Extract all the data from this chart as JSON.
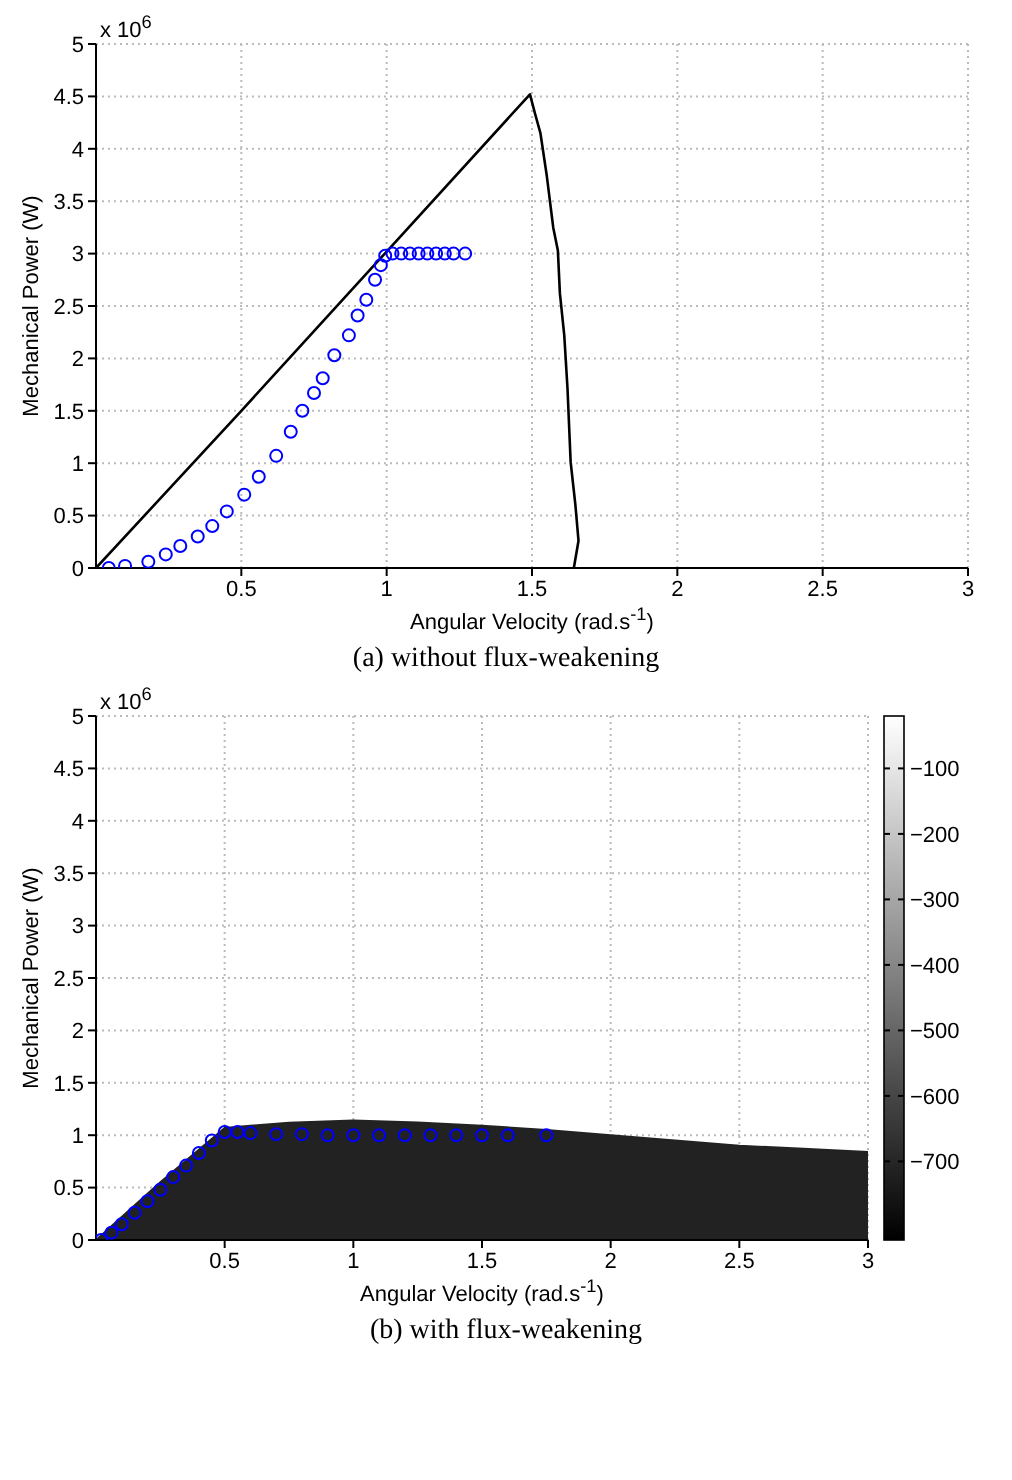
{
  "chart_data": [
    {
      "type": "line",
      "title": "(a)  without flux-weakening",
      "xlabel": "Angular Velocity (rad.s$^{-1}$)",
      "ylabel": "Mechanical Power (W)",
      "annotations": [
        "x 10$^{6}$"
      ],
      "xlim": [
        0,
        3
      ],
      "xticks": [
        0.5,
        1,
        1.5,
        2,
        2.5,
        3
      ],
      "ylim": [
        0,
        5
      ],
      "yticks": [
        0,
        0.5,
        1,
        1.5,
        2,
        2.5,
        3,
        3.5,
        4,
        4.5,
        5
      ],
      "grid": true,
      "series": [
        {
          "color": "#000000",
          "x": [
            0,
            0.5,
            1,
            1.493,
            1.511,
            1.529,
            1.551,
            1.573,
            1.589,
            1.596,
            1.611,
            1.622,
            1.633,
            1.649,
            1.66,
            1.644
          ],
          "values": [
            0,
            1.5,
            3.02,
            4.52,
            4.33,
            4.15,
            3.74,
            3.25,
            3.03,
            2.62,
            2.22,
            1.72,
            1.01,
            0.61,
            0.26,
            0
          ]
        },
        {
          "type": "scatter",
          "marker": "circle",
          "color": "#0000ff",
          "x": [
            0.044,
            0.1,
            0.18,
            0.24,
            0.29,
            0.35,
            0.4,
            0.45,
            0.51,
            0.56,
            0.62,
            0.67,
            0.71,
            0.75,
            0.78,
            0.82,
            0.87,
            0.9,
            0.93,
            0.96,
            0.98,
            0.995,
            1.02,
            1.05,
            1.08,
            1.11,
            1.14,
            1.17,
            1.2,
            1.23,
            1.27
          ],
          "values": [
            0,
            0.02,
            0.06,
            0.13,
            0.21,
            0.3,
            0.4,
            0.54,
            0.7,
            0.87,
            1.07,
            1.3,
            1.5,
            1.67,
            1.81,
            2.03,
            2.22,
            2.41,
            2.56,
            2.75,
            2.89,
            2.98,
            3,
            3,
            3,
            3,
            3,
            3,
            3,
            3,
            3
          ]
        }
      ]
    },
    {
      "type": "area",
      "title": "(b)  with flux-weakening",
      "xlabel": "Angular Velocity (rad.s$^{-1}$)",
      "ylabel": "Mechanical Power (W)",
      "annotations": [
        "x 10$^{6}$"
      ],
      "xlim": [
        0,
        3
      ],
      "xticks": [
        0.5,
        1,
        1.5,
        2,
        2.5,
        3
      ],
      "ylim": [
        0,
        5
      ],
      "yticks": [
        0,
        0.5,
        1,
        1.5,
        2,
        2.5,
        3,
        3.5,
        4,
        4.5,
        5
      ],
      "grid": true,
      "clim": [
        -820,
        -20
      ],
      "cticks": [
        -100,
        -200,
        -300,
        -400,
        -500,
        -600,
        -700
      ],
      "series": [
        {
          "color": "#222222",
          "x": [
            0,
            0.25,
            0.5,
            0.75,
            1,
            1.25,
            1.5,
            1.75,
            2,
            2.25,
            2.5,
            2.75,
            3
          ],
          "values": [
            0,
            0.55,
            1.07,
            1.12,
            1.14,
            1.12,
            1.09,
            1.05,
            1,
            0.95,
            0.9,
            0.87,
            0.84
          ]
        },
        {
          "type": "scatter",
          "marker": "circle",
          "color": "#0000ff",
          "x": [
            0.02,
            0.06,
            0.1,
            0.15,
            0.2,
            0.25,
            0.3,
            0.35,
            0.4,
            0.45,
            0.5,
            0.55,
            0.6,
            0.7,
            0.8,
            0.9,
            1,
            1.1,
            1.2,
            1.3,
            1.4,
            1.5,
            1.6,
            1.75
          ],
          "values": [
            0,
            0.07,
            0.15,
            0.26,
            0.37,
            0.48,
            0.6,
            0.71,
            0.83,
            0.95,
            1.03,
            1.03,
            1.02,
            1.01,
            1.01,
            1,
            1,
            1,
            1,
            1,
            1,
            1,
            1,
            1
          ]
        }
      ]
    }
  ]
}
